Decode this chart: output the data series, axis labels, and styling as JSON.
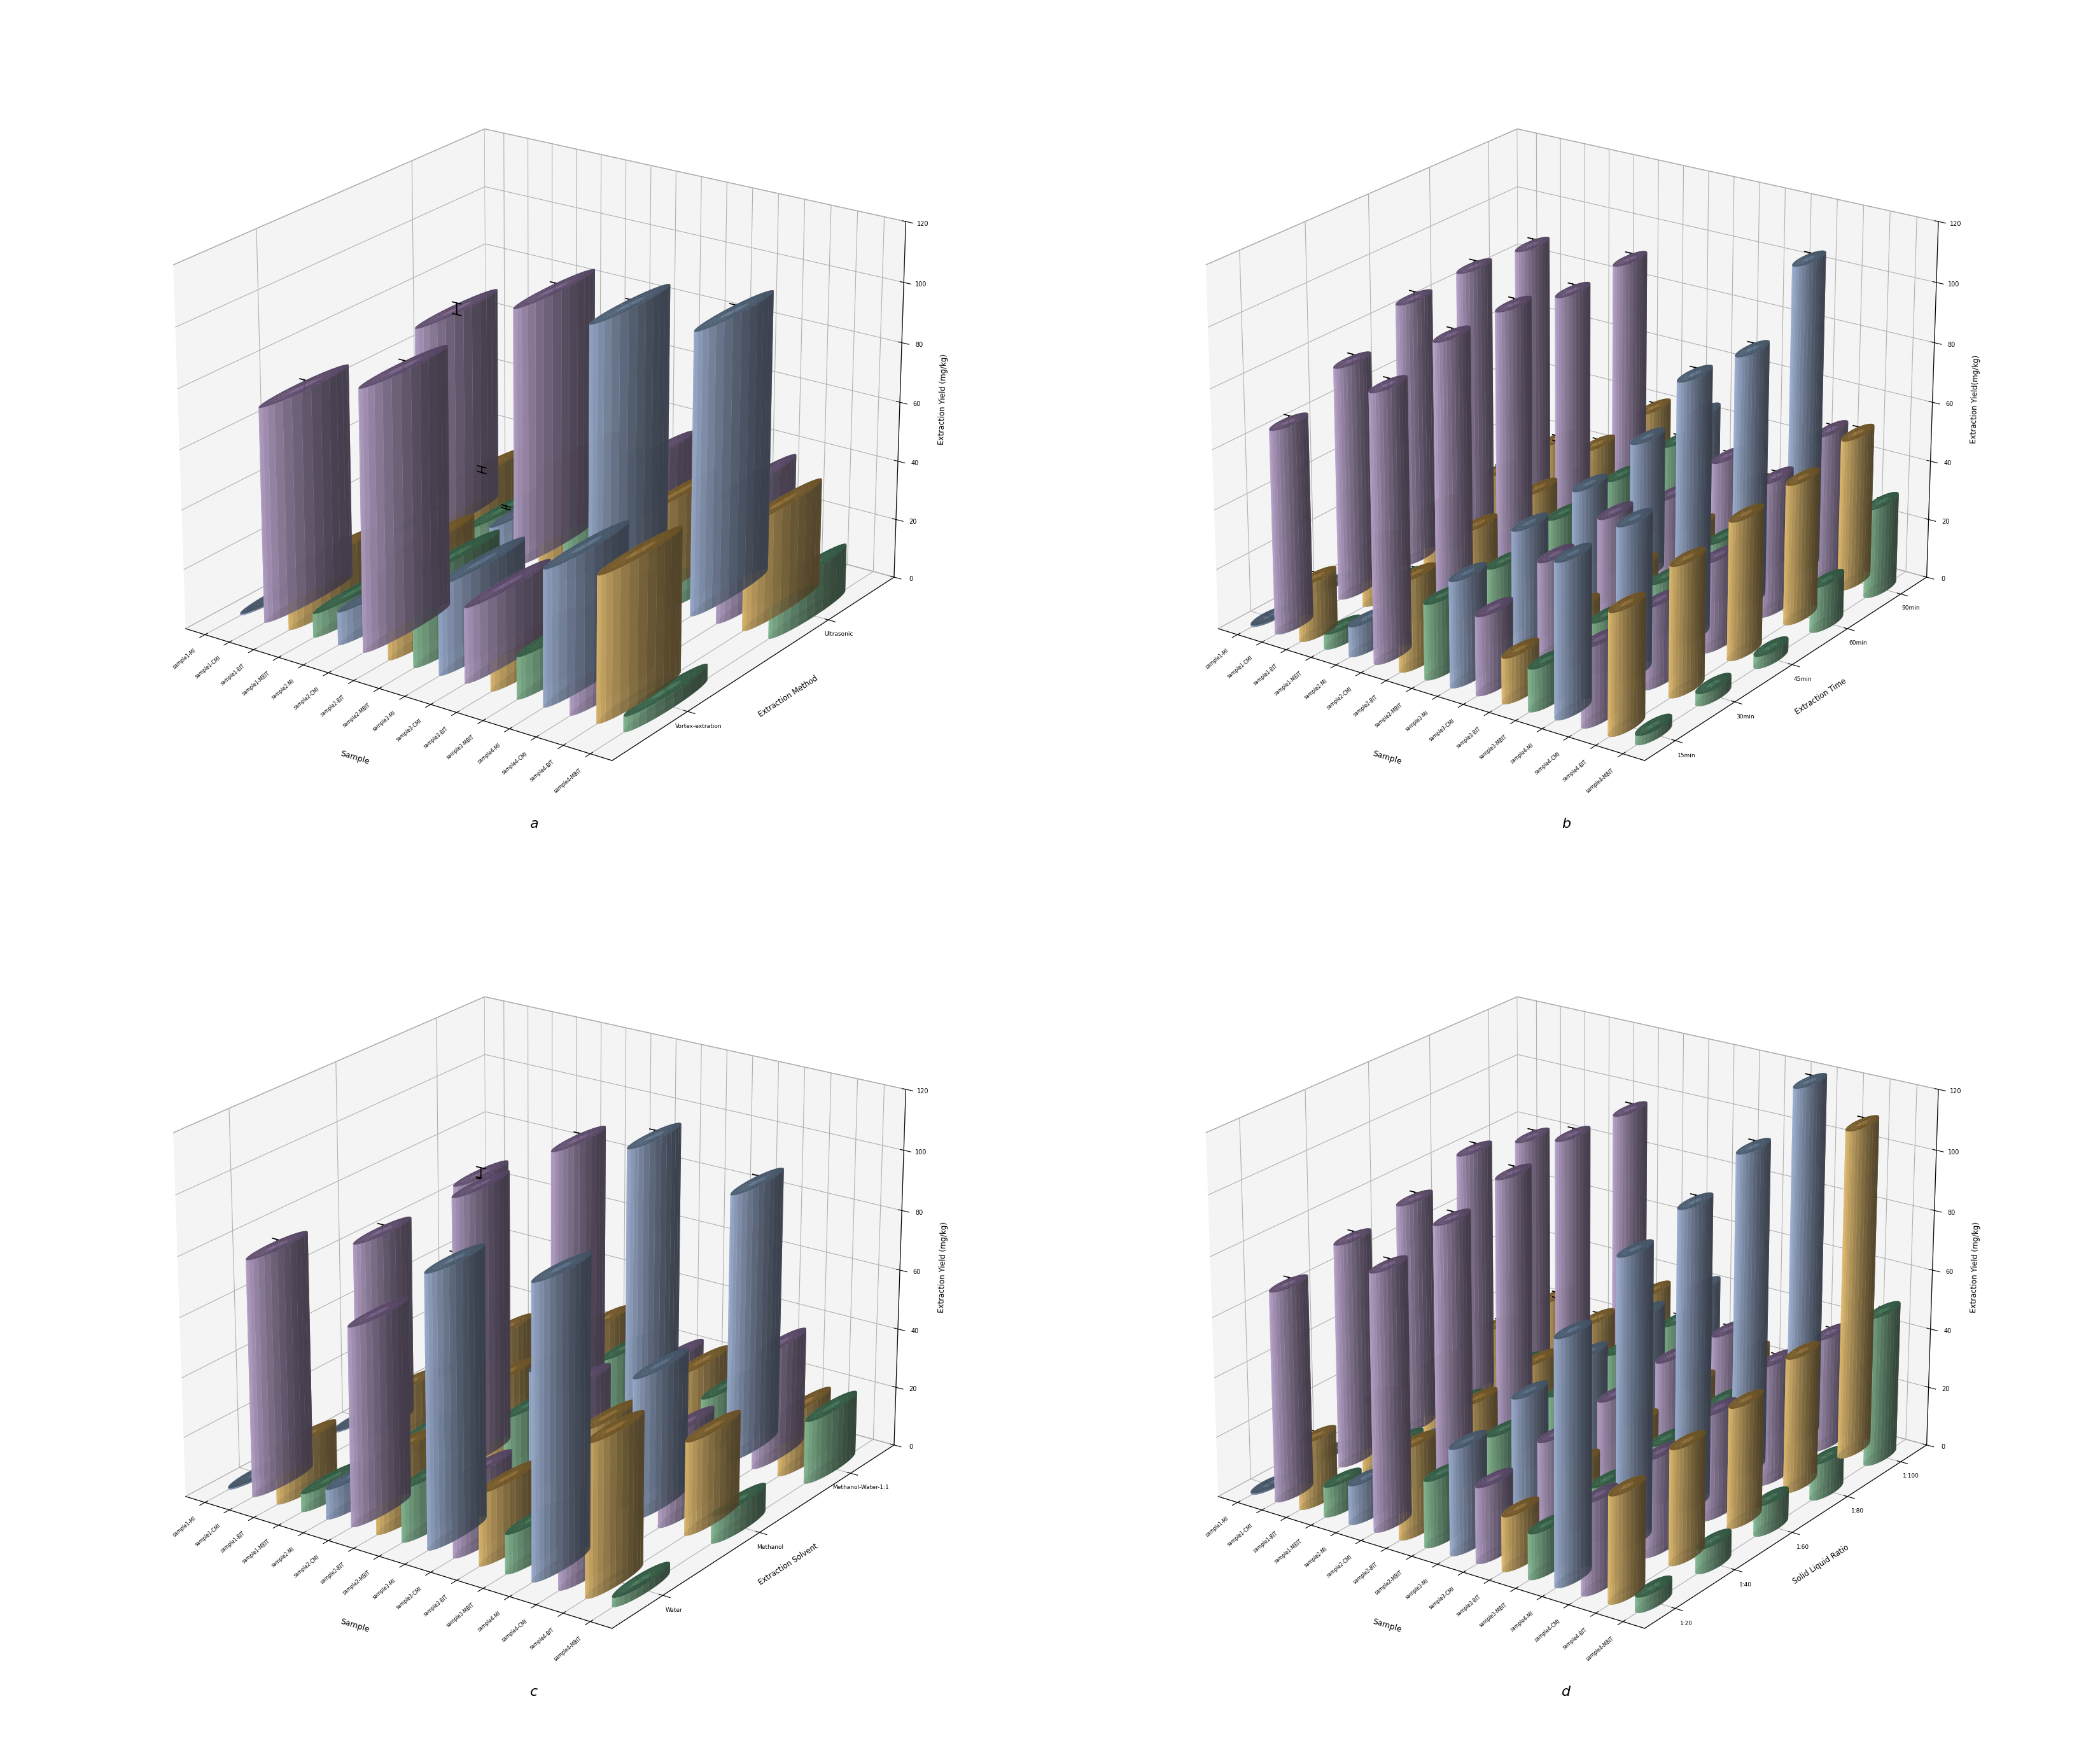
{
  "samples": [
    "sample1-MI",
    "sample1-CMI",
    "sample1-BIT",
    "sample1-MBIT",
    "sample2-MI",
    "sample2-CMI",
    "sample2-BIT",
    "sample2-MBIT",
    "sample3-MI",
    "sample3-CMI",
    "sample3-BIT",
    "sample3-MBIT",
    "sample4-MI",
    "sample4-CMI",
    "sample4-BIT",
    "sample4-MBIT"
  ],
  "sample_colors": [
    "#a8bce0",
    "#c4aed8",
    "#f0c878",
    "#90c8a0",
    "#a8bce0",
    "#c4aed8",
    "#f0c878",
    "#90c8a0",
    "#a8bce0",
    "#c4aed8",
    "#f0c878",
    "#90c8a0",
    "#a8bce0",
    "#c4aed8",
    "#f0c878",
    "#90c8a0"
  ],
  "sample_colors_dark": [
    "#7898b8",
    "#9878b0",
    "#c09040",
    "#509870",
    "#7898b8",
    "#9878b0",
    "#c09040",
    "#509870",
    "#7898b8",
    "#9878b0",
    "#c09040",
    "#509870",
    "#7898b8",
    "#9878b0",
    "#c09040",
    "#509870"
  ],
  "panel_a": {
    "label": "a",
    "xlabel": "Sample",
    "ylabel": "Extraction Yield (mg/kg)",
    "zlabel": "Extraction Method",
    "methods": [
      "Vortex-extration",
      "Ultrasonic"
    ],
    "data": {
      "Vortex-extration": [
        0.5,
        72,
        19,
        8,
        11,
        87,
        33,
        30,
        30,
        25,
        11,
        14,
        45,
        31,
        48,
        5
      ],
      "Ultrasonic": [
        0.5,
        73,
        19,
        8,
        11,
        88,
        34,
        31,
        89,
        41,
        30,
        16,
        95,
        42,
        36,
        16
      ]
    },
    "errors": {
      "Vortex-extration": [
        0.3,
        2.0,
        1.0,
        0.5,
        0.5,
        2.0,
        1.5,
        1.5,
        1.5,
        1.2,
        0.8,
        0.8,
        2.0,
        1.5,
        2.0,
        0.4
      ],
      "Ultrasonic": [
        0.3,
        2.0,
        1.0,
        0.5,
        0.5,
        2.0,
        1.5,
        1.5,
        1.5,
        1.2,
        0.8,
        0.8,
        2.0,
        1.5,
        2.0,
        0.8
      ]
    }
  },
  "panel_b": {
    "label": "b",
    "xlabel": "Sample",
    "ylabel": "Extraction Yield(mg/kg)",
    "zlabel": "Extraction Time",
    "methods": [
      "15min",
      "30min",
      "45min",
      "60min",
      "90min"
    ],
    "data": {
      "15min": [
        0.5,
        68,
        19,
        5,
        10,
        89,
        30,
        25,
        35,
        26,
        15,
        14,
        51,
        26,
        40,
        3
      ],
      "30min": [
        0.5,
        78,
        20,
        10,
        12,
        95,
        35,
        25,
        40,
        32,
        18,
        17,
        51,
        27,
        43,
        4
      ],
      "45min": [
        0.5,
        89,
        21,
        11,
        13,
        95,
        36,
        30,
        42,
        35,
        20,
        18,
        87,
        30,
        46,
        4
      ],
      "60min": [
        0.5,
        90,
        22,
        12,
        14,
        90,
        40,
        32,
        47,
        30,
        22,
        20,
        85,
        45,
        47,
        15
      ],
      "90min": [
        0.5,
        88,
        22,
        13,
        15,
        91,
        42,
        33,
        45,
        32,
        25,
        22,
        105,
        50,
        51,
        30
      ]
    },
    "errors": {
      "15min": [
        0.3,
        2.0,
        1.0,
        0.5,
        0.5,
        2.0,
        1.5,
        1.5,
        1.5,
        1.2,
        0.8,
        0.8,
        2.0,
        1.5,
        2.0,
        0.3
      ],
      "30min": [
        0.3,
        2.0,
        1.0,
        0.5,
        0.5,
        2.0,
        1.5,
        1.5,
        1.5,
        1.2,
        0.8,
        0.8,
        2.0,
        1.5,
        2.0,
        0.3
      ],
      "45min": [
        0.3,
        2.0,
        1.0,
        0.5,
        0.5,
        2.0,
        1.5,
        1.5,
        1.5,
        1.2,
        0.8,
        0.8,
        2.0,
        1.5,
        2.0,
        0.3
      ],
      "60min": [
        0.3,
        2.0,
        1.0,
        0.5,
        0.5,
        2.0,
        1.5,
        1.5,
        1.5,
        1.2,
        0.8,
        0.8,
        2.0,
        1.5,
        2.0,
        0.5
      ],
      "90min": [
        0.3,
        2.0,
        1.0,
        0.5,
        0.5,
        2.0,
        1.5,
        1.5,
        1.5,
        1.2,
        0.8,
        0.8,
        2.0,
        1.5,
        2.0,
        0.8
      ]
    }
  },
  "panel_c": {
    "label": "c",
    "xlabel": "Sample",
    "ylabel": "Extraction Yield (mg/kg)",
    "zlabel": "Extraction Solvent",
    "methods": [
      "Water",
      "Methanol",
      "Methanol-Water-1:1"
    ],
    "data": {
      "Water": [
        0.5,
        79,
        18,
        6,
        10,
        66,
        25,
        18,
        90,
        25,
        24,
        13,
        96,
        27,
        50,
        3
      ],
      "Methanol": [
        0.5,
        67,
        17,
        5,
        9,
        91,
        30,
        22,
        40,
        35,
        25,
        20,
        47,
        30,
        31,
        9
      ],
      "Methanol-Water-1:1": [
        0.5,
        70,
        18,
        5,
        10,
        90,
        30,
        23,
        97,
        25,
        25,
        19,
        90,
        38,
        20,
        21
      ]
    },
    "errors": {
      "Water": [
        0.3,
        2.0,
        1.0,
        0.5,
        0.5,
        2.0,
        1.5,
        0.5,
        2.0,
        1.5,
        1.5,
        1.2,
        2.0,
        1.5,
        2.0,
        0.3
      ],
      "Methanol": [
        0.3,
        2.0,
        1.0,
        0.5,
        0.5,
        2.0,
        1.5,
        1.5,
        2.0,
        1.5,
        1.5,
        1.2,
        2.0,
        1.5,
        2.0,
        0.5
      ],
      "Methanol-Water-1:1": [
        0.3,
        2.0,
        1.0,
        0.5,
        0.5,
        2.0,
        1.5,
        1.5,
        2.0,
        1.5,
        1.5,
        1.2,
        2.0,
        1.5,
        2.0,
        0.8
      ]
    }
  },
  "panel_d": {
    "label": "d",
    "xlabel": "Sample",
    "ylabel": "Extraction Yield (mg/kg)",
    "zlabel": "Solid Liquid Ratio",
    "methods": [
      "1:20",
      "1:40",
      "1:60",
      "1:80",
      "1:100"
    ],
    "data": {
      "1:20": [
        0.5,
        70,
        22,
        10,
        13,
        85,
        30,
        22,
        35,
        25,
        18,
        15,
        80,
        30,
        35,
        5
      ],
      "1:40": [
        0.5,
        75,
        24,
        12,
        15,
        90,
        33,
        25,
        40,
        28,
        22,
        18,
        95,
        32,
        38,
        8
      ],
      "1:60": [
        0.5,
        78,
        25,
        14,
        16,
        95,
        35,
        27,
        42,
        30,
        24,
        20,
        100,
        35,
        40,
        10
      ],
      "1:80": [
        0.5,
        85,
        27,
        16,
        18,
        98,
        38,
        30,
        45,
        32,
        26,
        22,
        108,
        40,
        45,
        12
      ],
      "1:100": [
        0.5,
        80,
        26,
        15,
        17,
        97,
        37,
        29,
        43,
        30,
        25,
        21,
        120,
        38,
        110,
        50
      ]
    },
    "errors": {
      "1:20": [
        0.3,
        2.0,
        1.0,
        0.5,
        0.5,
        2.0,
        1.5,
        1.5,
        1.5,
        1.2,
        0.8,
        0.8,
        2.0,
        1.5,
        2.0,
        0.3
      ],
      "1:40": [
        0.3,
        2.0,
        1.0,
        0.5,
        0.5,
        2.0,
        1.5,
        1.5,
        1.5,
        1.2,
        0.8,
        0.8,
        2.0,
        1.5,
        2.0,
        0.3
      ],
      "1:60": [
        0.3,
        2.0,
        1.0,
        0.5,
        0.5,
        2.0,
        1.5,
        1.5,
        1.5,
        1.2,
        0.8,
        0.8,
        2.0,
        1.5,
        2.0,
        0.3
      ],
      "1:80": [
        0.3,
        2.0,
        1.0,
        0.5,
        0.5,
        2.0,
        1.5,
        1.5,
        1.5,
        1.2,
        0.8,
        0.8,
        2.0,
        1.5,
        2.0,
        0.3
      ],
      "1:100": [
        0.3,
        2.0,
        1.0,
        0.5,
        0.5,
        2.0,
        1.5,
        1.5,
        1.5,
        1.2,
        0.8,
        0.8,
        2.0,
        1.5,
        2.0,
        0.8
      ]
    }
  },
  "ylim": [
    0,
    120
  ],
  "yticks": [
    0,
    20,
    40,
    60,
    80,
    100,
    120
  ],
  "elev": 22,
  "azim": -55
}
